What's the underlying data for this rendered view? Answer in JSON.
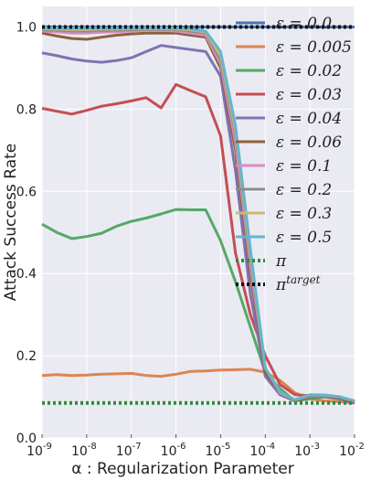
{
  "chart_data": {
    "type": "line",
    "xlabel": "α : Regularization Parameter",
    "ylabel": "Attack Success Rate",
    "x_scale": "log",
    "xlim": [
      1e-09,
      0.01
    ],
    "ylim": [
      0.0,
      1.05
    ],
    "x_ticks": [
      {
        "value": 1e-09,
        "base": "10",
        "exp": "-9"
      },
      {
        "value": 1e-08,
        "base": "10",
        "exp": "-8"
      },
      {
        "value": 1e-07,
        "base": "10",
        "exp": "-7"
      },
      {
        "value": 1e-06,
        "base": "10",
        "exp": "-6"
      },
      {
        "value": 1e-05,
        "base": "10",
        "exp": "-5"
      },
      {
        "value": 0.0001,
        "base": "10",
        "exp": "-4"
      },
      {
        "value": 0.001,
        "base": "10",
        "exp": "-3"
      },
      {
        "value": 0.01,
        "base": "10",
        "exp": "-2"
      }
    ],
    "y_ticks": [
      {
        "value": 0.0,
        "label": "0.0"
      },
      {
        "value": 0.2,
        "label": "0.2"
      },
      {
        "value": 0.4,
        "label": "0.4"
      },
      {
        "value": 0.6,
        "label": "0.6"
      },
      {
        "value": 0.8,
        "label": "0.8"
      },
      {
        "value": 1.0,
        "label": "1.0"
      }
    ],
    "grid": true,
    "legend_position": "right",
    "x": [
      1e-09,
      2.15e-09,
      4.64e-09,
      1e-08,
      2.15e-08,
      4.64e-08,
      1e-07,
      2.15e-07,
      4.64e-07,
      1e-06,
      2.15e-06,
      4.64e-06,
      1e-05,
      2.15e-05,
      4.64e-05,
      0.0001,
      0.000215,
      0.000464,
      0.001,
      0.00215,
      0.00464,
      0.01
    ],
    "series": [
      {
        "name": "ε = 0.0",
        "legend": "ε = 0.0",
        "color": "#4c72b0",
        "style": "solid",
        "values": [
          1.0,
          1.0,
          1.0,
          1.0,
          1.0,
          1.0,
          1.0,
          1.0,
          1.0,
          1.0,
          1.0,
          1.0,
          1.0,
          1.0,
          1.0,
          1.0,
          1.0,
          1.0,
          1.0,
          1.0,
          1.0,
          1.0
        ],
        "note_hidden": true
      },
      {
        "name": "ε = 0.005",
        "legend": "ε = 0.005",
        "color": "#dd8452",
        "style": "solid",
        "x_idx": [
          0,
          1,
          2,
          3,
          4,
          5,
          6,
          7,
          8,
          9,
          10,
          11,
          12,
          13,
          14,
          15,
          16,
          17,
          18,
          19,
          20,
          21
        ],
        "values": [
          0.152,
          0.154,
          0.152,
          0.153,
          0.155,
          0.156,
          0.157,
          0.152,
          0.15,
          0.155,
          0.162,
          0.163,
          0.165,
          0.166,
          0.167,
          0.16,
          0.14,
          0.11,
          0.095,
          0.09,
          0.088,
          0.085
        ]
      },
      {
        "name": "ε = 0.02",
        "legend": "ε = 0.02",
        "color": "#55a868",
        "style": "solid",
        "values": [
          0.52,
          0.5,
          0.485,
          0.49,
          0.498,
          0.515,
          0.527,
          0.535,
          0.545,
          0.556,
          0.555,
          0.555,
          0.48,
          0.38,
          0.27,
          0.16,
          0.12,
          0.09,
          0.095,
          0.1,
          0.095,
          0.088
        ]
      },
      {
        "name": "ε = 0.03",
        "legend": "ε = 0.03",
        "color": "#c44e52",
        "style": "solid",
        "values": [
          0.802,
          0.795,
          0.788,
          0.797,
          0.807,
          0.813,
          0.82,
          0.828,
          0.803,
          0.86,
          0.845,
          0.83,
          0.735,
          0.45,
          0.3,
          0.2,
          0.13,
          0.105,
          0.103,
          0.1,
          0.095,
          0.085
        ]
      },
      {
        "name": "ε = 0.04",
        "legend": "ε = 0.04",
        "color": "#8172b2",
        "style": "solid",
        "values": [
          0.937,
          0.93,
          0.922,
          0.917,
          0.914,
          0.918,
          0.925,
          0.94,
          0.955,
          0.95,
          0.945,
          0.94,
          0.88,
          0.65,
          0.35,
          0.15,
          0.105,
          0.09,
          0.1,
          0.1,
          0.095,
          0.088
        ]
      },
      {
        "name": "ε = 0.06",
        "legend": "ε = 0.06",
        "color": "#8c613c",
        "style": "solid",
        "values": [
          0.985,
          0.978,
          0.972,
          0.97,
          0.975,
          0.98,
          0.983,
          0.985,
          0.985,
          0.985,
          0.98,
          0.975,
          0.9,
          0.7,
          0.4,
          0.16,
          0.11,
          0.09,
          0.1,
          0.1,
          0.098,
          0.088
        ]
      },
      {
        "name": "ε = 0.1",
        "legend": "ε = 0.1",
        "color": "#da8bc3",
        "style": "solid",
        "values": [
          0.99,
          0.988,
          0.985,
          0.985,
          0.987,
          0.988,
          0.99,
          0.992,
          0.992,
          0.99,
          0.985,
          0.98,
          0.91,
          0.72,
          0.42,
          0.17,
          0.11,
          0.092,
          0.102,
          0.102,
          0.1,
          0.089
        ]
      },
      {
        "name": "ε = 0.2",
        "legend": "ε = 0.2",
        "color": "#8c8c8c",
        "style": "solid",
        "values": [
          0.993,
          0.992,
          0.99,
          0.99,
          0.991,
          0.992,
          0.993,
          0.994,
          0.994,
          0.993,
          0.99,
          0.985,
          0.92,
          0.74,
          0.44,
          0.17,
          0.112,
          0.092,
          0.103,
          0.103,
          0.1,
          0.089
        ]
      },
      {
        "name": "ε = 0.3",
        "legend": "ε = 0.3",
        "color": "#ccb974",
        "style": "solid",
        "values": [
          0.996,
          0.995,
          0.994,
          0.994,
          0.995,
          0.995,
          0.996,
          0.996,
          0.996,
          0.995,
          0.993,
          0.988,
          0.93,
          0.75,
          0.45,
          0.17,
          0.112,
          0.093,
          0.105,
          0.105,
          0.1,
          0.09
        ]
      },
      {
        "name": "ε = 0.5",
        "legend": "ε = 0.5",
        "color": "#64b5cd",
        "style": "solid",
        "values": [
          0.998,
          0.997,
          0.997,
          0.997,
          0.997,
          0.997,
          0.998,
          0.998,
          0.998,
          0.997,
          0.995,
          0.99,
          0.94,
          0.76,
          0.46,
          0.17,
          0.112,
          0.093,
          0.105,
          0.104,
          0.1,
          0.09
        ]
      }
    ],
    "reference_lines": [
      {
        "name": "π",
        "legend": "π",
        "color": "#2e8b3a",
        "style": "dotted",
        "value": 0.085
      },
      {
        "name": "π^target",
        "legend_base": "π",
        "legend_sup": "target",
        "color": "#111111",
        "style": "dotted",
        "value": 1.0
      }
    ]
  }
}
